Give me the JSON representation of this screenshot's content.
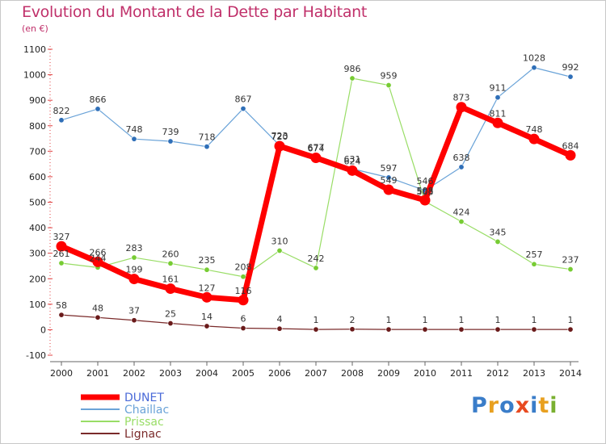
{
  "header": {
    "title": "Evolution du Montant de la Dette par Habitant",
    "unit": "(en €)"
  },
  "logo": {
    "text": "Proxiti",
    "letters": [
      "P",
      "r",
      "o",
      "x",
      "i",
      "t",
      "i"
    ],
    "colors": [
      "#3a7dc9",
      "#e8a020",
      "#3a7dc9",
      "#e84a20",
      "#3a7dc9",
      "#e8a020",
      "#7ab030"
    ]
  },
  "chart_data": {
    "type": "line",
    "title": "Evolution du Montant de la Dette par Habitant",
    "subtitle": "(en €)",
    "x": [
      "2000",
      "2001",
      "2002",
      "2003",
      "2004",
      "2005",
      "2006",
      "2007",
      "2008",
      "2009",
      "2010",
      "2011",
      "2012",
      "2013",
      "2014"
    ],
    "yticks": [
      -100,
      0,
      100,
      200,
      300,
      400,
      500,
      600,
      700,
      800,
      900,
      1000,
      1100
    ],
    "ylim": [
      -100,
      1100
    ],
    "grid": false,
    "legend": "bottom-left",
    "series": [
      {
        "name": "DUNET",
        "color": "#ff0000",
        "point_color": "#4a6ad8",
        "width": 7,
        "values": [
          327,
          266,
          199,
          161,
          127,
          116,
          720,
          674,
          624,
          549,
          508,
          873,
          811,
          748,
          684
        ]
      },
      {
        "name": "Chaillac",
        "color": "#6aa3d8",
        "point_color": "#2f6fb8",
        "width": 1.2,
        "values": [
          822,
          866,
          748,
          739,
          718,
          867,
          723,
          677,
          631,
          597,
          546,
          638,
          911,
          1028,
          992
        ]
      },
      {
        "name": "Prissac",
        "color": "#99dd66",
        "point_color": "#77cc33",
        "width": 1.2,
        "values": [
          261,
          244,
          283,
          260,
          235,
          208,
          310,
          242,
          986,
          959,
          503,
          424,
          345,
          257,
          237
        ]
      },
      {
        "name": "Lignac",
        "color": "#7a2a2a",
        "point_color": "#6a1a1a",
        "width": 1.2,
        "values": [
          58,
          48,
          37,
          25,
          14,
          6,
          4,
          1,
          2,
          1,
          1,
          1,
          1,
          1,
          1
        ]
      }
    ]
  }
}
